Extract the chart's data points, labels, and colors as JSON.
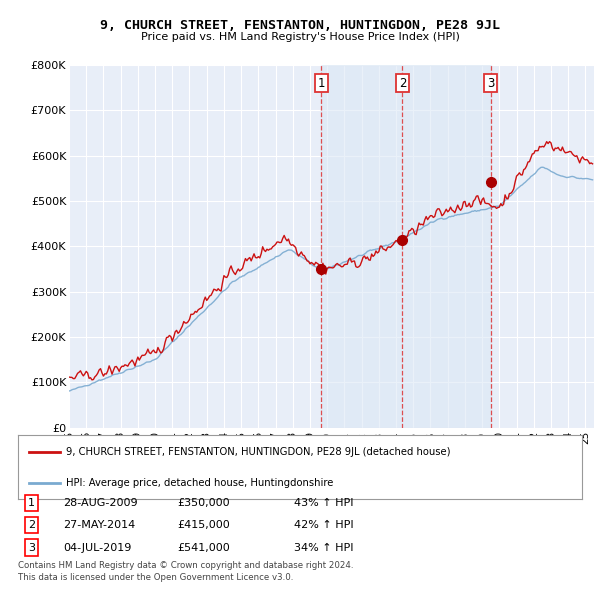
{
  "title": "9, CHURCH STREET, FENSTANTON, HUNTINGDON, PE28 9JL",
  "subtitle": "Price paid vs. HM Land Registry's House Price Index (HPI)",
  "ylim": [
    0,
    800000
  ],
  "yticks": [
    0,
    100000,
    200000,
    300000,
    400000,
    500000,
    600000,
    700000,
    800000
  ],
  "ytick_labels": [
    "£0",
    "£100K",
    "£200K",
    "£300K",
    "£400K",
    "£500K",
    "£600K",
    "£700K",
    "£800K"
  ],
  "background_color": "#ffffff",
  "plot_bg_color": "#e8eef8",
  "shade_bg_color": "#dce8f5",
  "grid_color": "#ffffff",
  "hpi_color": "#7aaad0",
  "price_color": "#cc1111",
  "sale_marker_color": "#aa0000",
  "vline_color": "#dd3333",
  "transactions": [
    {
      "num": 1,
      "date": 2009.66,
      "price": 350000
    },
    {
      "num": 2,
      "date": 2014.37,
      "price": 415000
    },
    {
      "num": 3,
      "date": 2019.5,
      "price": 541000
    }
  ],
  "transaction_table": [
    {
      "num": "1",
      "date": "28-AUG-2009",
      "price": "£350,000",
      "change": "43% ↑ HPI"
    },
    {
      "num": "2",
      "date": "27-MAY-2014",
      "price": "£415,000",
      "change": "42% ↑ HPI"
    },
    {
      "num": "3",
      "date": "04-JUL-2019",
      "price": "£541,000",
      "change": "34% ↑ HPI"
    }
  ],
  "legend_entries": [
    {
      "label": "9, CHURCH STREET, FENSTANTON, HUNTINGDON, PE28 9JL (detached house)",
      "color": "#cc1111"
    },
    {
      "label": "HPI: Average price, detached house, Huntingdonshire",
      "color": "#7aaad0"
    }
  ],
  "footer": [
    "Contains HM Land Registry data © Crown copyright and database right 2024.",
    "This data is licensed under the Open Government Licence v3.0."
  ],
  "xmin": 1995.0,
  "xmax": 2025.5
}
